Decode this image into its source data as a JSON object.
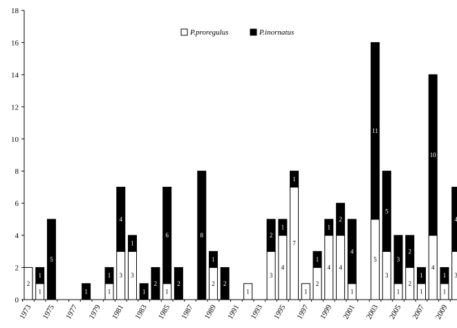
{
  "chart_data": {
    "type": "stacked_bar",
    "categories": [
      "1973",
      null,
      "1975",
      null,
      "1977",
      null,
      "1979",
      null,
      "1981",
      null,
      "1983",
      null,
      "1985",
      null,
      "1987",
      null,
      "1989",
      null,
      "1991",
      null,
      "1993",
      null,
      "1995",
      null,
      "1997",
      null,
      "1999",
      null,
      "2001",
      null,
      "2003",
      null,
      "2005",
      null,
      "2007",
      null,
      "2009",
      null
    ],
    "series": [
      {
        "name": "P.proregulus",
        "color": "#ffffff",
        "values": [
          2,
          1,
          0,
          0,
          0,
          0,
          0,
          1,
          3,
          3,
          0,
          0,
          1,
          0,
          0,
          0,
          2,
          0,
          0,
          1,
          0,
          3,
          4,
          7,
          1,
          2,
          4,
          4,
          1,
          0,
          5,
          3,
          1,
          2,
          1,
          4,
          1,
          3
        ]
      },
      {
        "name": "P.inornatus",
        "color": "#000000",
        "values": [
          0,
          1,
          5,
          0,
          0,
          1,
          0,
          1,
          4,
          1,
          1,
          2,
          6,
          2,
          0,
          8,
          1,
          2,
          0,
          0,
          0,
          2,
          1,
          1,
          0,
          1,
          1,
          2,
          4,
          0,
          11,
          5,
          3,
          2,
          1,
          10,
          1,
          4
        ]
      }
    ],
    "ylim": [
      0,
      18
    ],
    "yticks": [
      0,
      2,
      4,
      6,
      8,
      10,
      12,
      14,
      16,
      18
    ],
    "legend": "top"
  }
}
